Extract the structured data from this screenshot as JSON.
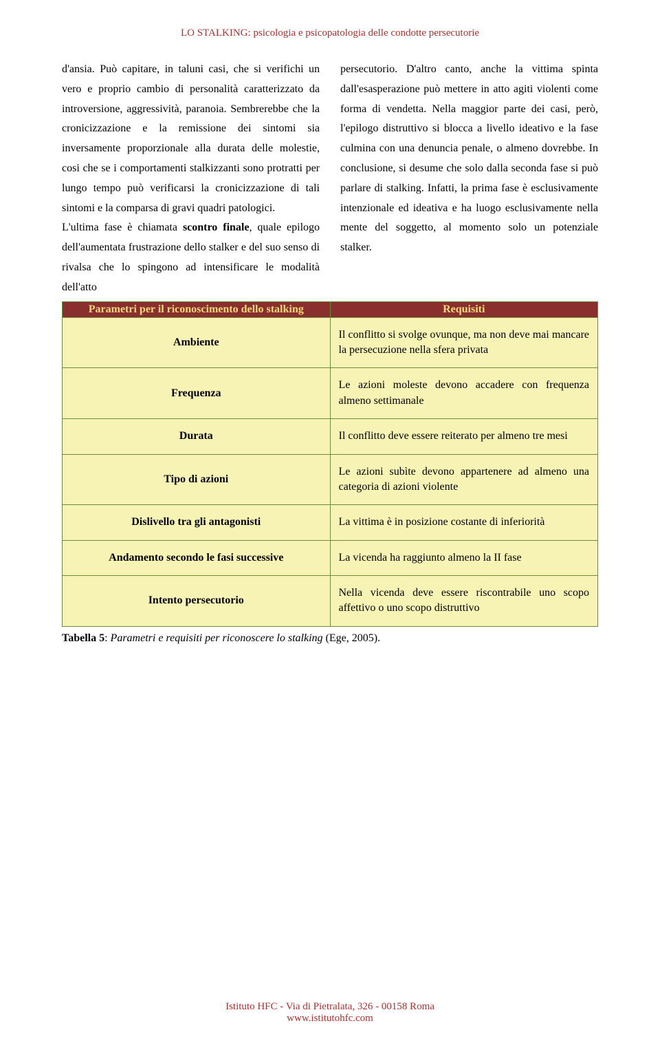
{
  "header": {
    "title": "LO STALKING: psicologia e psicopatologia delle condotte persecutorie"
  },
  "body": {
    "left_para_1": "d'ansia. Può capitare, in taluni casi, che si verifichi un vero e proprio cambio di personalità caratterizzato da introversione, aggressività, paranoia. Sembrerebbe che la cronicizzazione e la remissione dei sintomi sia inversamente proporzionale alla durata delle molestie, cosi che se i comportamenti stalkizzanti sono protratti per lungo tempo può verificarsi la cronicizzazione di tali sintomi e la comparsa di gravi quadri patologici.",
    "left_para_2a": "L'ultima fase è chiamata ",
    "left_para_2_bold": "scontro finale",
    "left_para_2b": ", quale epilogo dell'aumentata frustrazione dello stalker e del suo senso di rivalsa che lo spingono ad intensificare le modalità dell'atto",
    "right_para": "persecutorio. D'altro canto, anche la vittima spinta dall'esasperazione può mettere in atto agiti violenti come forma di vendetta. Nella maggior parte dei casi, però, l'epilogo distruttivo si blocca a livello ideativo e la fase culmina con una denuncia penale, o almeno dovrebbe. In conclusione, si desume che solo dalla seconda fase si può parlare di stalking. Infatti, la prima fase è esclusivamente intenzionale ed ideativa e ha luogo esclusivamente nella mente del soggetto, al momento solo un potenziale stalker."
  },
  "table": {
    "header_left": "Parametri per il riconoscimento dello stalking",
    "header_right": "Requisiti",
    "rows": [
      {
        "param": "Ambiente",
        "req": "Il conflitto si svolge ovunque, ma non deve mai mancare la persecuzione nella sfera privata"
      },
      {
        "param": "Frequenza",
        "req": "Le azioni moleste devono accadere con frequenza almeno settimanale"
      },
      {
        "param": "Durata",
        "req": "Il conflitto deve essere reiterato per almeno tre mesi"
      },
      {
        "param": "Tipo di azioni",
        "req": "Le azioni subìte devono appartenere ad almeno una categoria di azioni violente"
      },
      {
        "param": "Dislivello tra gli antagonisti",
        "req": "La vittima è in posizione costante di inferiorità"
      },
      {
        "param": "Andamento secondo le fasi successive",
        "req": "La vicenda ha raggiunto almeno la II fase"
      },
      {
        "param": "Intento persecutorio",
        "req": "Nella vicenda deve essere riscontrabile uno scopo affettivo o uno scopo distruttivo"
      }
    ]
  },
  "caption": {
    "label": "Tabella 5",
    "text": "Parametri e requisiti per riconoscere lo stalking",
    "cite": " (Ege, 2005)."
  },
  "footer": {
    "line1": "Istituto HFC - Via di Pietralata, 326 - 00158 Roma",
    "line2": "www.istitutohfc.com"
  },
  "colors": {
    "header_text": "#b03030",
    "table_header_bg": "#8b2e2e",
    "table_header_text": "#f5d97a",
    "table_cell_bg": "#f7f3b5",
    "table_border": "#6d8a3a",
    "body_text": "#000000",
    "background": "#ffffff"
  },
  "typography": {
    "body_fontsize": 16,
    "header_fontsize": 15,
    "line_height": 1.8
  }
}
